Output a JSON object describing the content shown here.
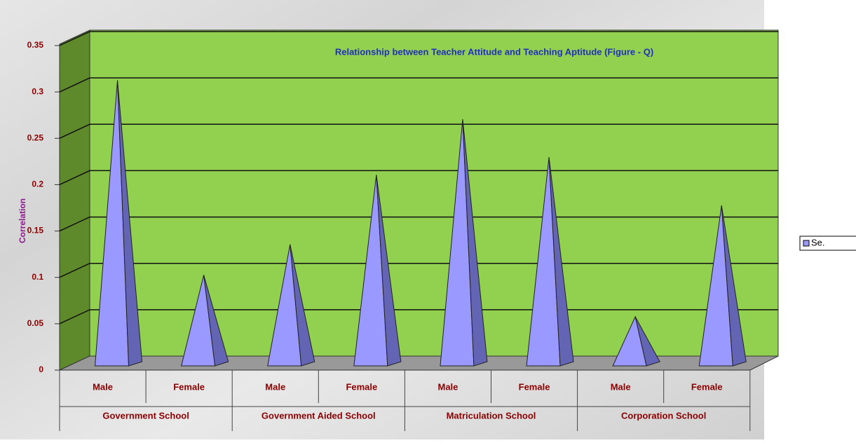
{
  "chart_data": {
    "type": "pyramid3d",
    "title": "Relationship between Teacher Attitude and Teaching Aptitude (Figure - Q)",
    "y_label": "Correlation",
    "categories": [
      "Male",
      "Female",
      "Male",
      "Female",
      "Male",
      "Female",
      "Male",
      "Female"
    ],
    "groups": [
      "Government School",
      "Government Aided School",
      "Matriculation School",
      "Corporation School"
    ],
    "series": [
      {
        "name": "Se.",
        "color": "#9999ff",
        "values": [
          0.305,
          0.095,
          0.128,
          0.203,
          0.263,
          0.222,
          0.05,
          0.17
        ]
      }
    ],
    "ylim": [
      0,
      0.35
    ],
    "yticks": [
      0,
      0.05,
      0.1,
      0.15,
      0.2,
      0.25,
      0.3,
      0.35
    ],
    "grid": true,
    "wall_color": "#92d050",
    "legend": "right"
  }
}
